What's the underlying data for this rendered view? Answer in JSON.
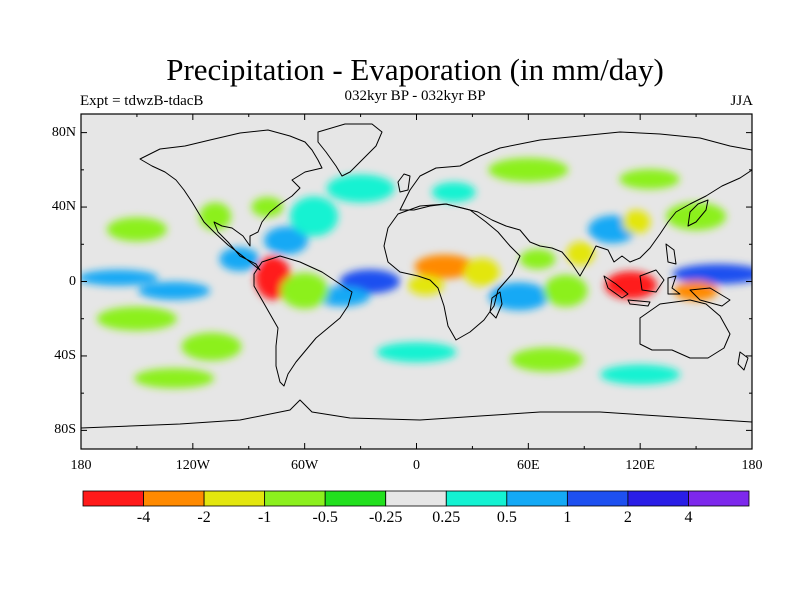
{
  "title": "Precipitation - Evaporation (in mm/day)",
  "subtitle": "032kyr BP - 032kyr BP",
  "left_label": "Expt = tdwzB-tdacB",
  "right_label": "JJA",
  "y_ticks": [
    "80N",
    "40N",
    "0",
    "40S",
    "80S"
  ],
  "x_ticks": [
    "180",
    "120W",
    "60W",
    "0",
    "60E",
    "120E",
    "180"
  ],
  "colorbar": {
    "colors": [
      "#ff1a1a",
      "#ff8a00",
      "#e3e60e",
      "#8cf01e",
      "#22e01e",
      "#e6e6e6",
      "#13f2d2",
      "#14a9f5",
      "#1e50f0",
      "#2a1ee6",
      "#7d28ec"
    ],
    "labels": [
      "-4",
      "-2",
      "-1",
      "-0.5",
      "-0.25",
      "0.25",
      "0.5",
      "1",
      "2",
      "4"
    ]
  },
  "chart_data": {
    "type": "heatmap",
    "title": "Precipitation - Evaporation (in mm/day)",
    "subtitle": "032kyr BP - 032kyr BP",
    "experiment": "Expt = tdwzB-tdacB",
    "season": "JJA",
    "x_range": [
      -180,
      180
    ],
    "y_range": [
      -90,
      90
    ],
    "levels": [
      -4,
      -2,
      -1,
      -0.5,
      -0.25,
      0.25,
      0.5,
      1,
      2,
      4
    ],
    "anomalies": [
      {
        "name": "west-pacific-itcz",
        "lon": 162,
        "lat": 4,
        "value": 2
      },
      {
        "name": "eq-pacific-strip",
        "lon": -160,
        "lat": 2,
        "value": 1
      },
      {
        "name": "eq-pacific-south-band",
        "lon": -130,
        "lat": -5,
        "value": 1
      },
      {
        "name": "tropical-atlantic",
        "lon": -25,
        "lat": 0,
        "value": 2
      },
      {
        "name": "atlantic-sw-band",
        "lon": -40,
        "lat": -8,
        "value": 1
      },
      {
        "name": "caribbean",
        "lon": -70,
        "lat": 22,
        "value": 1
      },
      {
        "name": "central-america-pacific",
        "lon": -95,
        "lat": 12,
        "value": 1
      },
      {
        "name": "mid-atlantic-north",
        "lon": -55,
        "lat": 35,
        "value": 0.5
      },
      {
        "name": "northwest-south-america",
        "lon": -77,
        "lat": 2,
        "value": -4
      },
      {
        "name": "amazon",
        "lon": -60,
        "lat": -5,
        "value": -0.5
      },
      {
        "name": "sahel",
        "lon": 15,
        "lat": 8,
        "value": -2
      },
      {
        "name": "east-africa",
        "lon": 35,
        "lat": 5,
        "value": -1
      },
      {
        "name": "equatorial-west-africa",
        "lon": 5,
        "lat": -2,
        "value": -1
      },
      {
        "name": "south-indian-ocean",
        "lon": 55,
        "lat": -8,
        "value": 1
      },
      {
        "name": "indian-ocean-central",
        "lon": 80,
        "lat": -5,
        "value": -0.5
      },
      {
        "name": "arabian-sea",
        "lon": 65,
        "lat": 12,
        "value": -0.5
      },
      {
        "name": "bay-of-bengal",
        "lon": 88,
        "lat": 15,
        "value": -1
      },
      {
        "name": "maritime-continent",
        "lon": 115,
        "lat": -2,
        "value": -4
      },
      {
        "name": "sw-pacific",
        "lon": 150,
        "lat": -5,
        "value": -2
      },
      {
        "name": "china",
        "lon": 105,
        "lat": 28,
        "value": 1
      },
      {
        "name": "east-china",
        "lon": 118,
        "lat": 32,
        "value": -1
      },
      {
        "name": "north-pacific-west",
        "lon": 150,
        "lat": 35,
        "value": -0.5
      },
      {
        "name": "north-pacific-east",
        "lon": -150,
        "lat": 28,
        "value": -0.5
      },
      {
        "name": "north-america-west",
        "lon": -108,
        "lat": 35,
        "value": -0.5
      },
      {
        "name": "north-america-east",
        "lon": -80,
        "lat": 40,
        "value": -0.5
      },
      {
        "name": "siberia",
        "lon": 60,
        "lat": 60,
        "value": -0.5
      },
      {
        "name": "east-asia-north",
        "lon": 125,
        "lat": 55,
        "value": -0.5
      },
      {
        "name": "north-atlantic",
        "lon": -30,
        "lat": 50,
        "value": 0.5
      },
      {
        "name": "europe",
        "lon": 20,
        "lat": 48,
        "value": 0.5
      },
      {
        "name": "south-pacific-west",
        "lon": -150,
        "lat": -20,
        "value": -0.5
      },
      {
        "name": "south-pacific-east",
        "lon": -110,
        "lat": -35,
        "value": -0.5
      },
      {
        "name": "southern-ocean-atlantic",
        "lon": 0,
        "lat": -38,
        "value": 0.5
      },
      {
        "name": "southern-ocean-indian",
        "lon": 70,
        "lat": -42,
        "value": -0.5
      },
      {
        "name": "southern-ocean-pacific",
        "lon": -130,
        "lat": -52,
        "value": -0.5
      },
      {
        "name": "southern-ocean-east",
        "lon": 120,
        "lat": -50,
        "value": 0.5
      }
    ]
  }
}
